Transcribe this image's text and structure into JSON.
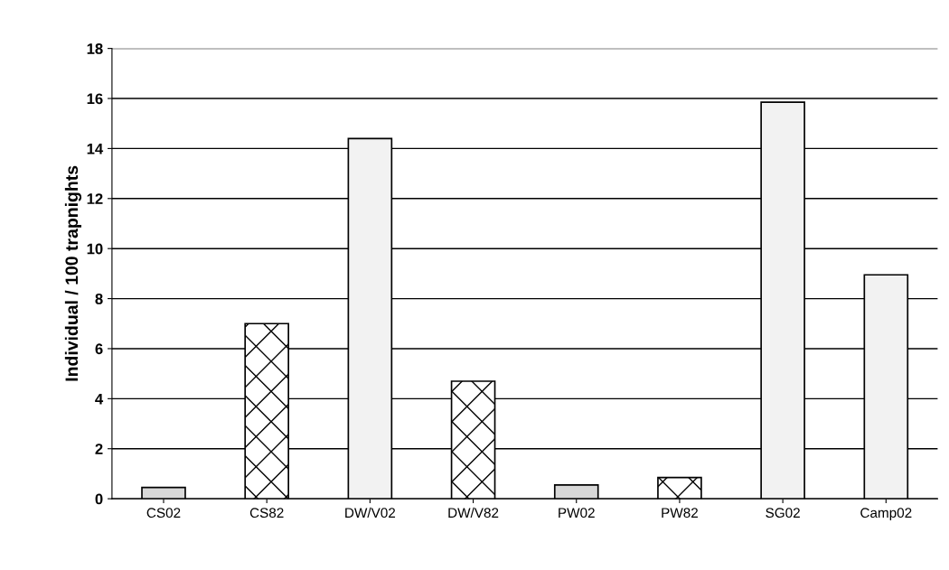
{
  "chart_data": {
    "type": "bar",
    "ylabel": "Individual / 100 trapnights",
    "categories": [
      "CS02",
      "CS82",
      "DW/V02",
      "DW/V82",
      "PW02",
      "PW82",
      "SG02",
      "Camp02"
    ],
    "values": [
      0.45,
      7.0,
      14.4,
      4.7,
      0.55,
      0.85,
      15.85,
      8.95
    ],
    "colors": [
      "#d8d8d8",
      "#000000",
      "#f2f2f2",
      "#000000",
      "#d8d8d8",
      "#000000",
      "#f2f2f2",
      "#f2f2f2"
    ],
    "ylim": [
      0,
      18
    ],
    "yticks": [
      0,
      2,
      4,
      6,
      8,
      10,
      12,
      14,
      16,
      18
    ],
    "grid": "y",
    "legend": false
  }
}
